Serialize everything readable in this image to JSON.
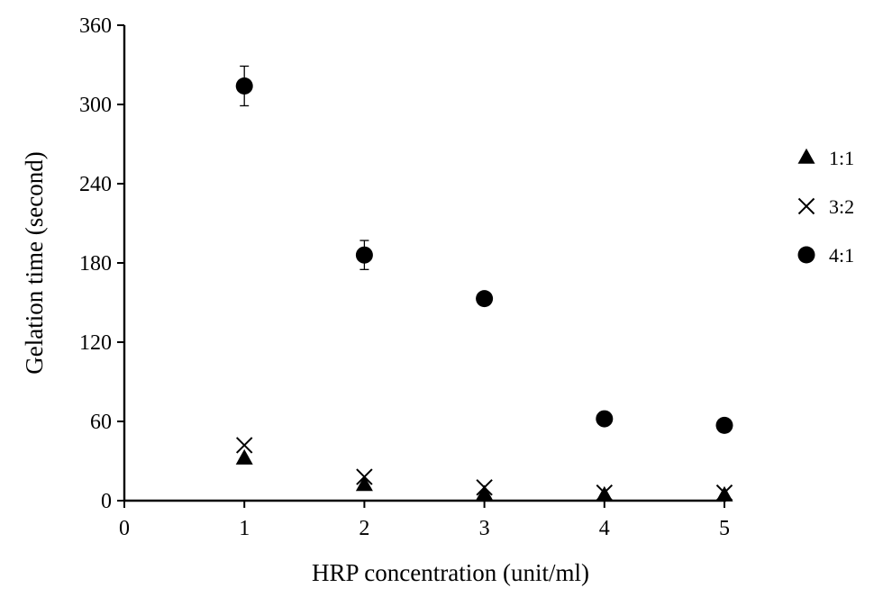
{
  "chart_data": {
    "type": "scatter",
    "title": "",
    "xlabel": "HRP concentration (unit/ml)",
    "ylabel": "Gelation time (second)",
    "xlim": [
      0,
      5
    ],
    "ylim": [
      0,
      360
    ],
    "x_ticks": [
      "0",
      "1",
      "2",
      "3",
      "4",
      "5"
    ],
    "y_ticks": [
      "0",
      "60",
      "120",
      "180",
      "240",
      "300",
      "360"
    ],
    "grid": false,
    "legend_position": "right",
    "series": [
      {
        "name": "1:1",
        "marker": "triangle",
        "points": [
          {
            "x": 1,
            "y": 32
          },
          {
            "x": 2,
            "y": 12
          },
          {
            "x": 3,
            "y": 5
          },
          {
            "x": 4,
            "y": 4
          },
          {
            "x": 5,
            "y": 4
          }
        ]
      },
      {
        "name": "3:2",
        "marker": "cross",
        "points": [
          {
            "x": 1,
            "y": 42
          },
          {
            "x": 2,
            "y": 18
          },
          {
            "x": 3,
            "y": 10
          },
          {
            "x": 4,
            "y": 6
          },
          {
            "x": 5,
            "y": 6
          }
        ]
      },
      {
        "name": "4:1",
        "marker": "circle",
        "points": [
          {
            "x": 1,
            "y": 314,
            "err": 15
          },
          {
            "x": 2,
            "y": 186,
            "err": 11
          },
          {
            "x": 3,
            "y": 153
          },
          {
            "x": 4,
            "y": 62
          },
          {
            "x": 5,
            "y": 57
          }
        ]
      }
    ]
  }
}
